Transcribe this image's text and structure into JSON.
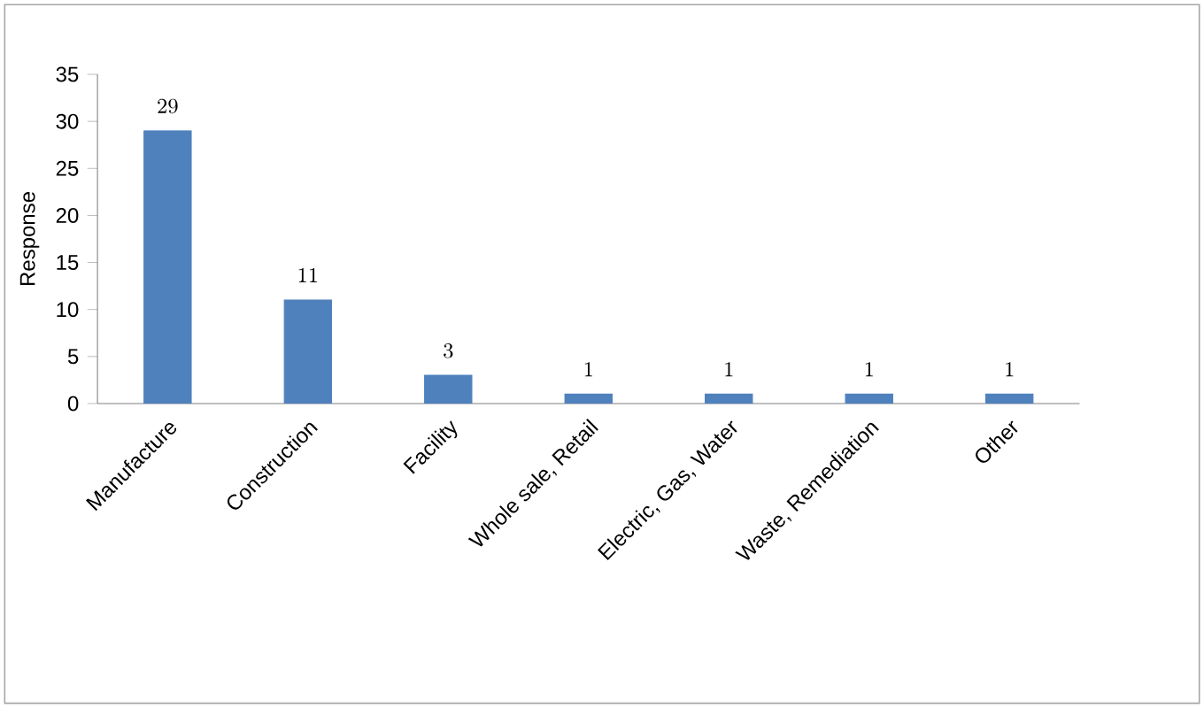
{
  "chart_data": {
    "type": "bar",
    "ylabel": "Response",
    "categories": [
      "Manufacture",
      "Construction",
      "Facility",
      "Whole sale, Retail",
      "Electric, Gas, Water",
      "Waste, Remediation",
      "Other"
    ],
    "values": [
      29,
      11,
      3,
      1,
      1,
      1,
      1
    ],
    "color": "#4f81bd",
    "ylim": [
      0,
      35
    ],
    "yticks": [
      0,
      5,
      10,
      15,
      20,
      25,
      30,
      35
    ],
    "grid": false,
    "data_labels": true
  }
}
